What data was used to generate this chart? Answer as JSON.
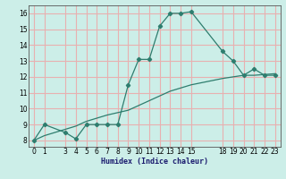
{
  "line1_x": [
    0,
    1,
    3,
    4,
    5,
    6,
    7,
    8,
    9,
    10,
    11,
    12,
    13,
    14,
    15,
    18,
    19,
    20,
    21,
    22,
    23
  ],
  "line1_y": [
    8,
    9,
    8.5,
    8.1,
    9.0,
    9.0,
    9.0,
    9.0,
    11.5,
    13.1,
    13.1,
    15.2,
    16.0,
    16.0,
    16.1,
    13.6,
    13.0,
    12.1,
    12.5,
    12.1,
    12.1
  ],
  "line2_x": [
    0,
    1,
    3,
    4,
    5,
    6,
    7,
    8,
    9,
    10,
    11,
    12,
    13,
    14,
    15,
    18,
    19,
    20,
    21,
    22,
    23
  ],
  "line2_y": [
    8.0,
    8.3,
    8.7,
    8.9,
    9.2,
    9.4,
    9.6,
    9.75,
    9.9,
    10.2,
    10.5,
    10.8,
    11.1,
    11.3,
    11.5,
    11.9,
    12.0,
    12.1,
    12.1,
    12.15,
    12.2
  ],
  "color": "#2e7d6e",
  "background": "#cceee8",
  "grid_color": "#e8b0b0",
  "xlabel": "Humidex (Indice chaleur)",
  "xlim": [
    -0.5,
    23.5
  ],
  "ylim": [
    7.6,
    16.5
  ],
  "yticks": [
    8,
    9,
    10,
    11,
    12,
    13,
    14,
    15,
    16
  ],
  "xticks": [
    0,
    1,
    3,
    4,
    5,
    6,
    7,
    8,
    9,
    10,
    11,
    12,
    13,
    14,
    15,
    18,
    19,
    20,
    21,
    22,
    23
  ]
}
